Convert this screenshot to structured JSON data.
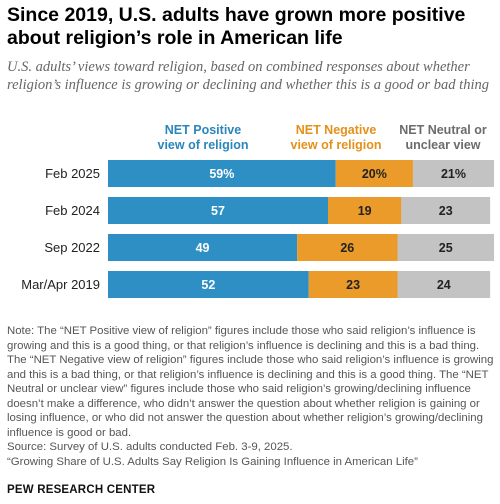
{
  "title": "Since 2019, U.S. adults have grown more positive about religion’s role in American life",
  "subtitle": "U.S. adults’ views toward religion, based on combined responses about whether religion’s influence is growing or declining and whether this is a good or bad thing",
  "chart_data": {
    "type": "bar",
    "stacked": true,
    "orientation": "horizontal",
    "categories": [
      "Feb 2025",
      "Feb 2024",
      "Sep 2022",
      "Mar/Apr 2019"
    ],
    "series": [
      {
        "name": "NET Positive view of religion",
        "values": [
          59,
          57,
          49,
          52
        ],
        "labels": [
          "59%",
          "57",
          "49",
          "52"
        ],
        "color": "#2e8fc4",
        "label_color": "#ffffff"
      },
      {
        "name": "NET Negative view of religion",
        "values": [
          20,
          19,
          26,
          23
        ],
        "labels": [
          "20%",
          "19",
          "26",
          "23"
        ],
        "color": "#ea9b2a",
        "label_color": "#222222"
      },
      {
        "name": "NET Neutral or unclear view",
        "values": [
          21,
          23,
          25,
          24
        ],
        "labels": [
          "21%",
          "23",
          "25",
          "24"
        ],
        "color": "#c3c3c3",
        "label_color": "#222222"
      }
    ],
    "xlim": [
      0,
      100
    ]
  },
  "legend": {
    "positive": [
      "NET Positive",
      "view of religion"
    ],
    "negative": [
      "NET Negative",
      "view of religion"
    ],
    "neutral": [
      "NET Neutral or",
      "unclear view"
    ]
  },
  "note": "Note: The “NET Positive view of religion” figures include those who said religion’s influence is growing and this is a good thing, or that religion’s influence is declining and this is a bad thing. The “NET Negative view of religion” figures include those who said religion’s influence is growing and this is a bad thing, or that religion’s influence is declining and this is a good thing. The “NET Neutral or unclear view” figures include those who said religion’s growing/declining influence doesn’t make a difference, who didn’t answer the question about whether religion is gaining or losing influence, or who did not answer the question about whether religion’s growing/declining influence is good or bad.",
  "source": "Source: Survey of U.S. adults conducted Feb. 3-9, 2025.",
  "report": "“Growing Share of U.S. Adults Say Religion Is Gaining Influence in American Life”",
  "brand": "PEW RESEARCH CENTER"
}
